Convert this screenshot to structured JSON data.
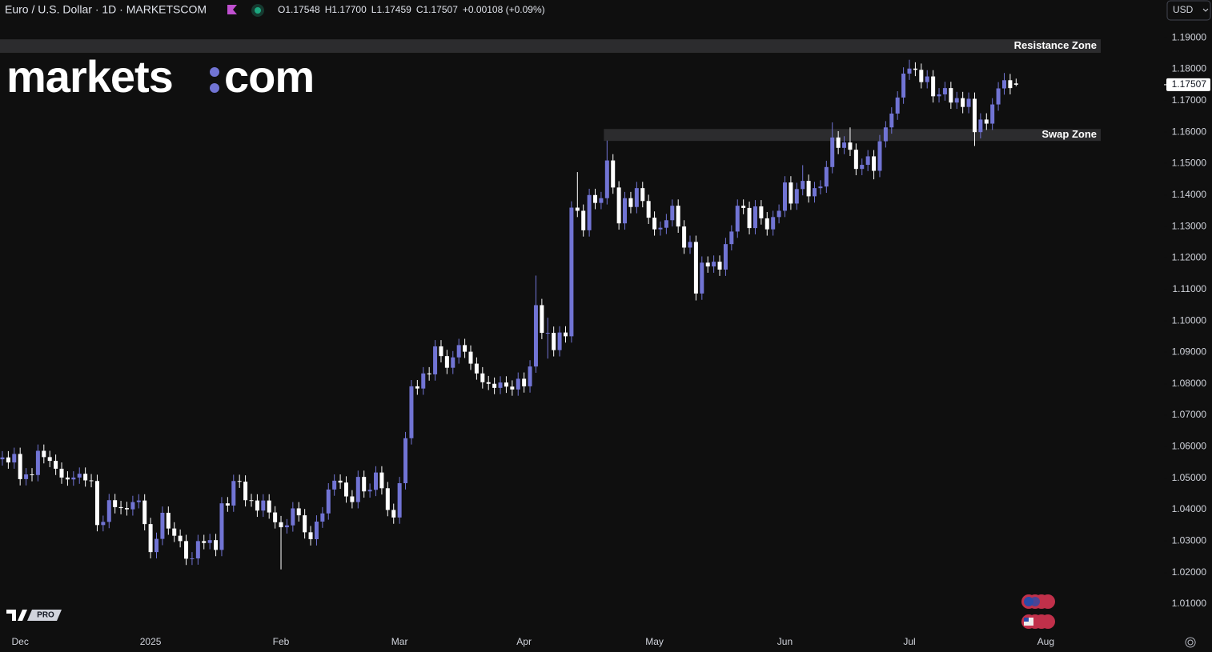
{
  "chart_data": {
    "type": "candlestick",
    "title": "Euro / U.S. Dollar · 1D · MARKETSCOM",
    "legend_values": [
      "O1.17548",
      "H1.17700",
      "L1.17459",
      "C1.17507",
      "+0.00108 (+0.09%)"
    ],
    "currency_button": "USD",
    "logo": {
      "left": "markets",
      "right": "com"
    },
    "badge": "PRO",
    "up_color": "#7174d4",
    "down_color": "#ffffff",
    "last_price": {
      "value": 1.17507,
      "label": "1.17507"
    },
    "zones": [
      {
        "label": "Resistance Zone",
        "range": [
          1.1852,
          1.1895
        ]
      },
      {
        "label": "Swap Zone",
        "range": [
          1.1572,
          1.161
        ],
        "x_start": 102
      }
    ],
    "xlim": [
      -0.4,
      195.4
    ],
    "xticks": [
      {
        "value": 3,
        "label": "Dec"
      },
      {
        "value": 25,
        "label": "2025"
      },
      {
        "value": 47,
        "label": "Feb"
      },
      {
        "value": 67,
        "label": "Mar"
      },
      {
        "value": 88,
        "label": "Apr"
      },
      {
        "value": 110,
        "label": "May"
      },
      {
        "value": 132,
        "label": "Jun"
      },
      {
        "value": 153,
        "label": "Jul"
      },
      {
        "value": 176,
        "label": "Aug"
      }
    ],
    "ylim": [
      1.0011,
      1.202
    ],
    "yticks": [
      {
        "value": 1.01,
        "label": "1.01000"
      },
      {
        "value": 1.02,
        "label": "1.02000"
      },
      {
        "value": 1.03,
        "label": "1.03000"
      },
      {
        "value": 1.04,
        "label": "1.04000"
      },
      {
        "value": 1.05,
        "label": "1.05000"
      },
      {
        "value": 1.06,
        "label": "1.06000"
      },
      {
        "value": 1.07,
        "label": "1.07000"
      },
      {
        "value": 1.08,
        "label": "1.08000"
      },
      {
        "value": 1.09,
        "label": "1.09000"
      },
      {
        "value": 1.1,
        "label": "1.10000"
      },
      {
        "value": 1.11,
        "label": "1.11000"
      },
      {
        "value": 1.12,
        "label": "1.12000"
      },
      {
        "value": 1.13,
        "label": "1.13000"
      },
      {
        "value": 1.14,
        "label": "1.14000"
      },
      {
        "value": 1.15,
        "label": "1.15000"
      },
      {
        "value": 1.16,
        "label": "1.16000"
      },
      {
        "value": 1.17,
        "label": "1.17000"
      },
      {
        "value": 1.18,
        "label": "1.18000"
      },
      {
        "value": 1.19,
        "label": "1.19000"
      }
    ],
    "candles": [
      [
        1.056,
        1.0586,
        1.054,
        1.0566
      ],
      [
        1.0566,
        1.0586,
        1.053,
        1.055
      ],
      [
        1.055,
        1.0597,
        1.053,
        1.0577
      ],
      [
        1.0577,
        1.0597,
        1.0477,
        1.0497
      ],
      [
        1.0497,
        1.0532,
        1.0477,
        1.0512
      ],
      [
        1.0512,
        1.0532,
        1.049,
        1.051
      ],
      [
        1.051,
        1.0607,
        1.049,
        1.0587
      ],
      [
        1.0587,
        1.0607,
        1.0547,
        1.0567
      ],
      [
        1.0567,
        1.0587,
        1.0535,
        1.0555
      ],
      [
        1.0555,
        1.0575,
        1.051,
        1.053
      ],
      [
        1.053,
        1.055,
        1.0482,
        1.0502
      ],
      [
        1.0502,
        1.0522,
        1.0476,
        1.0496
      ],
      [
        1.0496,
        1.0522,
        1.0476,
        1.0502
      ],
      [
        1.0502,
        1.0534,
        1.0482,
        1.0514
      ],
      [
        1.0514,
        1.0534,
        1.0473,
        1.0493
      ],
      [
        1.0493,
        1.0513,
        1.0471,
        1.0491
      ],
      [
        1.0491,
        1.0511,
        1.0331,
        1.0351
      ],
      [
        1.0351,
        1.0381,
        1.0331,
        1.0361
      ],
      [
        1.0361,
        1.045,
        1.0341,
        1.043
      ],
      [
        1.043,
        1.045,
        1.0388,
        1.0408
      ],
      [
        1.0408,
        1.0428,
        1.0385,
        1.0405
      ],
      [
        1.0405,
        1.0425,
        1.0381,
        1.0401
      ],
      [
        1.0401,
        1.0444,
        1.0381,
        1.0424
      ],
      [
        1.0424,
        1.0449,
        1.0404,
        1.0429
      ],
      [
        1.0429,
        1.0449,
        1.0334,
        1.0354
      ],
      [
        1.0354,
        1.0374,
        1.0245,
        1.0265
      ],
      [
        1.0265,
        1.0327,
        1.0245,
        1.0307
      ],
      [
        1.0307,
        1.041,
        1.0287,
        1.039
      ],
      [
        1.039,
        1.041,
        1.032,
        1.034
      ],
      [
        1.034,
        1.036,
        1.0297,
        1.0317
      ],
      [
        1.0317,
        1.0337,
        1.028,
        1.03
      ],
      [
        1.03,
        1.032,
        1.0224,
        1.0244
      ],
      [
        1.0244,
        1.0265,
        1.0224,
        1.0245
      ],
      [
        1.0245,
        1.032,
        1.0225,
        1.03
      ],
      [
        1.03,
        1.032,
        1.0274,
        1.0294
      ],
      [
        1.0294,
        1.0323,
        1.0274,
        1.0303
      ],
      [
        1.0303,
        1.0323,
        1.0252,
        1.0272
      ],
      [
        1.0272,
        1.044,
        1.0252,
        1.042
      ],
      [
        1.042,
        1.044,
        1.0393,
        1.0413
      ],
      [
        1.0413,
        1.0511,
        1.0393,
        1.0491
      ],
      [
        1.0491,
        1.0511,
        1.0469,
        1.0489
      ],
      [
        1.0489,
        1.0509,
        1.041,
        1.043
      ],
      [
        1.043,
        1.045,
        1.0409,
        1.0429
      ],
      [
        1.0429,
        1.0449,
        1.0377,
        1.0397
      ],
      [
        1.0397,
        1.0449,
        1.0377,
        1.0429
      ],
      [
        1.0429,
        1.0449,
        1.0371,
        1.0391
      ],
      [
        1.0391,
        1.0411,
        1.034,
        1.036
      ],
      [
        1.036,
        1.038,
        1.021,
        1.0344
      ],
      [
        1.0344,
        1.037,
        1.0324,
        1.035
      ],
      [
        1.035,
        1.0424,
        1.033,
        1.0404
      ],
      [
        1.0404,
        1.0424,
        1.0362,
        1.0382
      ],
      [
        1.0382,
        1.0402,
        1.0308,
        1.0328
      ],
      [
        1.0328,
        1.0348,
        1.0286,
        1.0306
      ],
      [
        1.0306,
        1.0382,
        1.0286,
        1.0362
      ],
      [
        1.0362,
        1.0408,
        1.0342,
        1.0388
      ],
      [
        1.0388,
        1.0484,
        1.0368,
        1.0464
      ],
      [
        1.0464,
        1.0512,
        1.0444,
        1.0492
      ],
      [
        1.0492,
        1.0512,
        1.0466,
        1.0486
      ],
      [
        1.0486,
        1.0506,
        1.0422,
        1.0442
      ],
      [
        1.0442,
        1.0462,
        1.0404,
        1.0424
      ],
      [
        1.0424,
        1.0524,
        1.0404,
        1.0504
      ],
      [
        1.0504,
        1.0524,
        1.0438,
        1.0458
      ],
      [
        1.0458,
        1.0483,
        1.0438,
        1.0463
      ],
      [
        1.0463,
        1.0538,
        1.0443,
        1.0518
      ],
      [
        1.0518,
        1.0538,
        1.0448,
        1.0468
      ],
      [
        1.0468,
        1.0488,
        1.0379,
        1.0399
      ],
      [
        1.0399,
        1.0419,
        1.0355,
        1.0375
      ],
      [
        1.0375,
        1.0504,
        1.0355,
        1.0484
      ],
      [
        1.0484,
        1.0647,
        1.0464,
        1.0627
      ],
      [
        1.0627,
        1.0812,
        1.0607,
        1.0792
      ],
      [
        1.0792,
        1.0812,
        1.0765,
        1.0785
      ],
      [
        1.0785,
        1.0853,
        1.0765,
        1.0833
      ],
      [
        1.0833,
        1.0853,
        1.081,
        1.083
      ],
      [
        1.083,
        1.0939,
        1.081,
        1.0919
      ],
      [
        1.0919,
        1.0939,
        1.0868,
        1.0888
      ],
      [
        1.0888,
        1.0908,
        1.0831,
        1.0851
      ],
      [
        1.0851,
        1.0904,
        1.0831,
        1.0884
      ],
      [
        1.0884,
        1.0943,
        1.0864,
        1.0923
      ],
      [
        1.0923,
        1.0943,
        1.0882,
        1.0902
      ],
      [
        1.0902,
        1.0922,
        1.0844,
        1.0864
      ],
      [
        1.0864,
        1.0884,
        1.0813,
        1.0833
      ],
      [
        1.0833,
        1.0853,
        1.0785,
        1.0805
      ],
      [
        1.0805,
        1.0825,
        1.078,
        1.08
      ],
      [
        1.08,
        1.082,
        1.0767,
        1.0787
      ],
      [
        1.0787,
        1.0824,
        1.0767,
        1.0804
      ],
      [
        1.0804,
        1.0824,
        1.0771,
        1.0791
      ],
      [
        1.0791,
        1.0811,
        1.0762,
        1.0782
      ],
      [
        1.0782,
        1.0836,
        1.0762,
        1.0816
      ],
      [
        1.0816,
        1.0836,
        1.0772,
        1.0792
      ],
      [
        1.0792,
        1.0875,
        1.0772,
        1.0855
      ],
      [
        1.0855,
        1.1144,
        1.0835,
        1.105
      ],
      [
        1.105,
        1.107,
        1.0942,
        1.0962
      ],
      [
        1.0962,
        1.101,
        1.088,
        1.0962
      ],
      [
        1.0962,
        1.0982,
        1.0887,
        1.0907
      ],
      [
        1.0907,
        1.0983,
        1.0887,
        1.0963
      ],
      [
        1.0963,
        1.0983,
        1.0931,
        1.0951
      ],
      [
        1.0951,
        1.138,
        1.0931,
        1.136
      ],
      [
        1.136,
        1.1473,
        1.133,
        1.135
      ],
      [
        1.135,
        1.137,
        1.1268,
        1.1288
      ],
      [
        1.1288,
        1.142,
        1.1268,
        1.14
      ],
      [
        1.14,
        1.142,
        1.1355,
        1.1375
      ],
      [
        1.1375,
        1.141,
        1.1355,
        1.139
      ],
      [
        1.139,
        1.1573,
        1.137,
        1.151
      ],
      [
        1.151,
        1.153,
        1.1404,
        1.1424
      ],
      [
        1.1424,
        1.1444,
        1.129,
        1.131
      ],
      [
        1.131,
        1.141,
        1.129,
        1.139
      ],
      [
        1.139,
        1.141,
        1.1342,
        1.1362
      ],
      [
        1.1362,
        1.1442,
        1.1342,
        1.1422
      ],
      [
        1.1422,
        1.1442,
        1.1361,
        1.1381
      ],
      [
        1.1381,
        1.1401,
        1.1308,
        1.1328
      ],
      [
        1.1328,
        1.1348,
        1.1271,
        1.1291
      ],
      [
        1.1291,
        1.1316,
        1.1271,
        1.1296
      ],
      [
        1.1296,
        1.134,
        1.1276,
        1.132
      ],
      [
        1.132,
        1.1386,
        1.13,
        1.1366
      ],
      [
        1.1366,
        1.1386,
        1.128,
        1.13
      ],
      [
        1.13,
        1.132,
        1.1213,
        1.1233
      ],
      [
        1.1233,
        1.1271,
        1.1213,
        1.1251
      ],
      [
        1.1251,
        1.1271,
        1.1065,
        1.1087
      ],
      [
        1.1087,
        1.1205,
        1.1067,
        1.1185
      ],
      [
        1.1185,
        1.1205,
        1.1153,
        1.1173
      ],
      [
        1.1173,
        1.1208,
        1.1153,
        1.1188
      ],
      [
        1.1188,
        1.1208,
        1.1143,
        1.1163
      ],
      [
        1.1163,
        1.1264,
        1.1143,
        1.1244
      ],
      [
        1.1244,
        1.1304,
        1.1224,
        1.1284
      ],
      [
        1.1284,
        1.1386,
        1.1264,
        1.1366
      ],
      [
        1.1366,
        1.1386,
        1.1339,
        1.1359
      ],
      [
        1.1359,
        1.1379,
        1.1275,
        1.1295
      ],
      [
        1.1295,
        1.1384,
        1.1275,
        1.1364
      ],
      [
        1.1364,
        1.1384,
        1.1306,
        1.1326
      ],
      [
        1.1326,
        1.1346,
        1.1271,
        1.1291
      ],
      [
        1.1291,
        1.135,
        1.1271,
        1.133
      ],
      [
        1.133,
        1.137,
        1.131,
        1.135
      ],
      [
        1.135,
        1.146,
        1.133,
        1.144
      ],
      [
        1.144,
        1.146,
        1.1353,
        1.1373
      ],
      [
        1.1373,
        1.1439,
        1.1353,
        1.1419
      ],
      [
        1.1419,
        1.1495,
        1.1399,
        1.1445
      ],
      [
        1.1445,
        1.1465,
        1.1376,
        1.1396
      ],
      [
        1.1396,
        1.1442,
        1.1376,
        1.1422
      ],
      [
        1.1422,
        1.1447,
        1.1402,
        1.1427
      ],
      [
        1.1427,
        1.1509,
        1.1407,
        1.1489
      ],
      [
        1.1489,
        1.1631,
        1.1469,
        1.1583
      ],
      [
        1.1583,
        1.1603,
        1.153,
        1.155
      ],
      [
        1.155,
        1.1587,
        1.153,
        1.1567
      ],
      [
        1.1567,
        1.1615,
        1.1524,
        1.1544
      ],
      [
        1.1544,
        1.1564,
        1.1463,
        1.1483
      ],
      [
        1.1483,
        1.1516,
        1.1463,
        1.1496
      ],
      [
        1.1496,
        1.1543,
        1.1476,
        1.1523
      ],
      [
        1.1523,
        1.1543,
        1.145,
        1.1477
      ],
      [
        1.1477,
        1.1591,
        1.1457,
        1.1571
      ],
      [
        1.1571,
        1.1635,
        1.1551,
        1.1615
      ],
      [
        1.1615,
        1.1679,
        1.1595,
        1.1659
      ],
      [
        1.1659,
        1.173,
        1.1639,
        1.171
      ],
      [
        1.171,
        1.1806,
        1.169,
        1.1786
      ],
      [
        1.1786,
        1.183,
        1.1766,
        1.1802
      ],
      [
        1.1802,
        1.1822,
        1.1778,
        1.1798
      ],
      [
        1.1798,
        1.1818,
        1.1739,
        1.1759
      ],
      [
        1.1759,
        1.1797,
        1.1739,
        1.1777
      ],
      [
        1.1777,
        1.1797,
        1.1694,
        1.1714
      ],
      [
        1.1714,
        1.174,
        1.1694,
        1.172
      ],
      [
        1.172,
        1.176,
        1.17,
        1.174
      ],
      [
        1.174,
        1.176,
        1.1674,
        1.1694
      ],
      [
        1.1694,
        1.1728,
        1.1674,
        1.1708
      ],
      [
        1.1708,
        1.1728,
        1.166,
        1.168
      ],
      [
        1.168,
        1.1726,
        1.166,
        1.1706
      ],
      [
        1.1706,
        1.1726,
        1.1556,
        1.16
      ],
      [
        1.16,
        1.166,
        1.158,
        1.164
      ],
      [
        1.164,
        1.166,
        1.1607,
        1.1627
      ],
      [
        1.1627,
        1.1708,
        1.1607,
        1.1688
      ],
      [
        1.1688,
        1.1759,
        1.1668,
        1.1739
      ],
      [
        1.1739,
        1.1788,
        1.1719,
        1.1765
      ],
      [
        1.1765,
        1.1785,
        1.172,
        1.174
      ],
      [
        1.17548,
        1.177,
        1.17459,
        1.17507
      ]
    ]
  }
}
